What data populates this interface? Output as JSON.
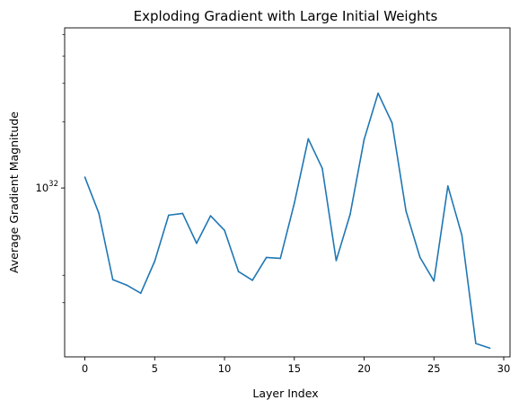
{
  "chart_data": {
    "type": "line",
    "title": "Exploding Gradient with Large Initial Weights",
    "xlabel": "Layer Index",
    "ylabel": "Average Gradient Magnitude",
    "yscale": "log",
    "xlim": [
      -1.45,
      30.45
    ],
    "ylim_log10": [
      31.23,
      32.73
    ],
    "xticks": [
      0,
      5,
      10,
      15,
      20,
      25,
      30
    ],
    "yticks": [
      {
        "label_base": "10",
        "label_exp": "32",
        "log10": 32
      }
    ],
    "yminor_log10": [
      31.477,
      31.602,
      32.301,
      32.477,
      32.602,
      32.699
    ],
    "grid": false,
    "series": [
      {
        "color": "#1f77b4",
        "x": [
          0,
          1,
          2,
          3,
          4,
          5,
          6,
          7,
          8,
          9,
          10,
          11,
          12,
          13,
          14,
          15,
          16,
          17,
          18,
          19,
          20,
          21,
          22,
          23,
          24,
          25,
          26,
          27,
          28,
          29
        ],
        "log10y": [
          32.049,
          31.885,
          31.582,
          31.557,
          31.52,
          31.666,
          31.876,
          31.884,
          31.748,
          31.873,
          31.807,
          31.619,
          31.579,
          31.683,
          31.679,
          31.93,
          32.224,
          32.09,
          31.669,
          31.88,
          32.221,
          32.432,
          32.297,
          31.895,
          31.684,
          31.576,
          32.009,
          31.785,
          31.291,
          31.27
        ]
      }
    ]
  }
}
